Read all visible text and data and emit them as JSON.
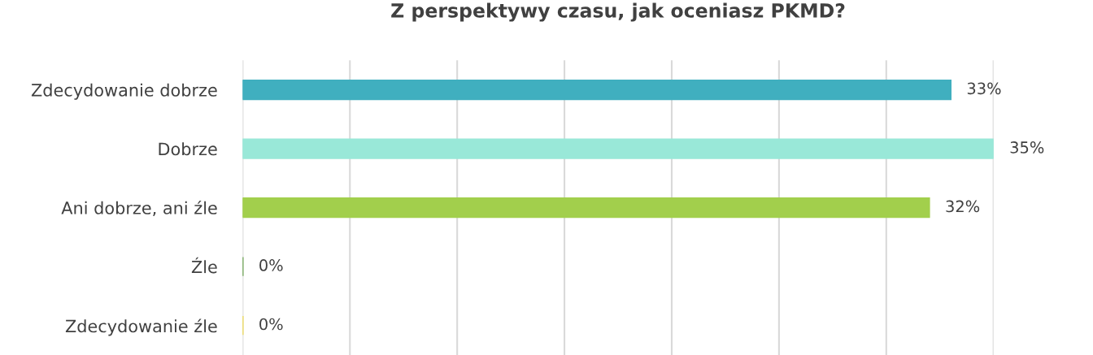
{
  "chart_data": {
    "type": "bar",
    "orientation": "horizontal",
    "title": "Z perspektywy czasu, jak oceniasz PKMD?",
    "categories": [
      "Zdecydowanie dobrze",
      "Dobrze",
      "Ani dobrze, ani źle",
      "Źle",
      "Zdecydowanie źle"
    ],
    "values": [
      33,
      35,
      32,
      0,
      0
    ],
    "colors": [
      "#40afbf",
      "#99e8d8",
      "#a2cf4c",
      "#5a9a3c",
      "#f0d83a"
    ],
    "value_labels": [
      "33%",
      "35%",
      "32%",
      "0%",
      "0%"
    ],
    "xlim": [
      0,
      35
    ],
    "xticks": [
      {
        "value": 0,
        "label": null
      },
      {
        "value": 5,
        "label": null
      },
      {
        "value": 10,
        "label": null
      },
      {
        "value": 15,
        "label": null
      },
      {
        "value": 20,
        "label": null
      },
      {
        "value": 25,
        "label": null
      },
      {
        "value": 30,
        "label": null
      },
      {
        "value": 35,
        "label": null
      }
    ],
    "tick_labels": "y",
    "grid": "x",
    "legend": false
  }
}
